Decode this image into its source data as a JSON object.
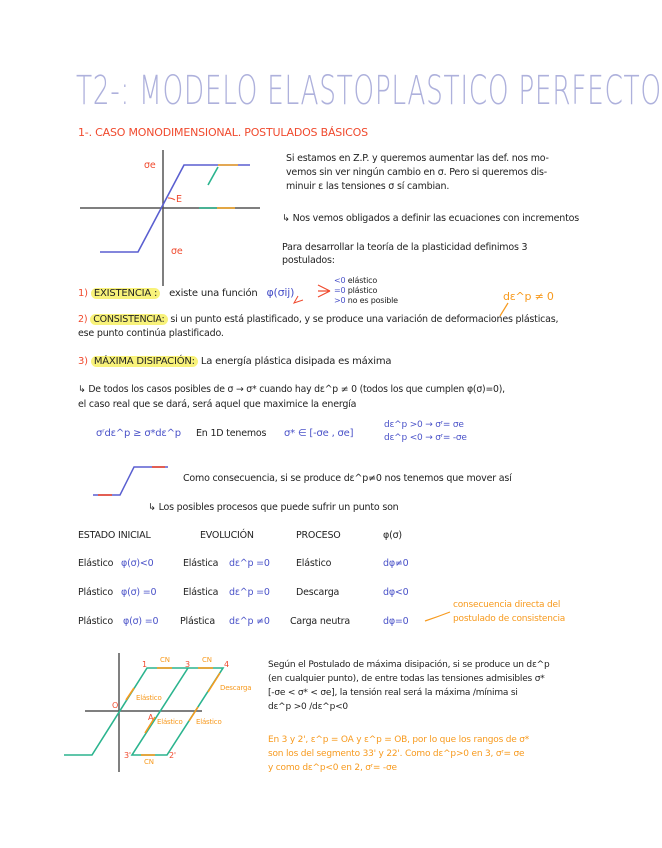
{
  "title": "T2-: MODELO ELASTOPLASTICO PERFECTO",
  "section1": "1-. CASO MONODIMENSIONAL. POSTULADOS BÁSICOS",
  "diagram1": {
    "sigma_top": "σe",
    "sigma_bottom": "σe",
    "modulus": "E"
  },
  "intro": [
    "Si estamos en Z.P. y queremos aumentar las def. nos mo-",
    "vemos sin ver ningún cambio en σ. Pero si queremos dis-",
    "minuir ε las tensiones σ sí cambian."
  ],
  "arrow_note": "↳ Nos vemos obligados a definir las ecuaciones con incrementos",
  "postulados_intro": [
    "Para desarrollar la teoría de la plasticidad definimos 3",
    "postulados:"
  ],
  "p1": {
    "num": "1)",
    "name": "EXISTENCIA :",
    "text": "existe una función",
    "func": "φ(σij)",
    "cases": [
      {
        "sign": "<0",
        "label": "elástico"
      },
      {
        "sign": "=0",
        "label": "plástico"
      },
      {
        "sign": ">0",
        "label": "no es posible"
      }
    ]
  },
  "orange_note1": "dε^p ≠ 0",
  "p2": {
    "num": "2)",
    "name": "CONSISTENCIA:",
    "text": "si un punto está plastificado, y se produce una variación de deformaciones plásticas,",
    "text2": "ese punto continúa plastificado."
  },
  "p3": {
    "num": "3)",
    "name": "MÁXIMA DISIPACIÓN:",
    "text": "La energía plástica disipada es máxima"
  },
  "p3_detail": [
    "↳ De todos los casos posibles de σ → σ* cuando hay dε^p ≠ 0 (todos los que cumplen φ(σ)=0),",
    "el caso real que se dará, será aquel que maximice la energía"
  ],
  "formula": {
    "ineq": "σʳdε^p ≥ σ*dε^p",
    "text": "En 1D tenemos",
    "range": "σ* ∈ [-σe , σe]",
    "case1": "dε^p >0 → σʳ= σe",
    "case2": "dε^p <0 → σʳ= -σe"
  },
  "consequence": "Como consecuencia, si se produce dε^p≠0 nos tenemos que mover así",
  "processes_intro": "↳ Los posibles procesos que puede sufrir un punto son",
  "table": {
    "headers": [
      "ESTADO INICIAL",
      "EVOLUCIÓN",
      "PROCESO",
      "φ(σ)"
    ],
    "rows": [
      {
        "state": "Elástico",
        "state_f": "φ(σ)<0",
        "evo": "Elástica",
        "evo_f": "dε^p =0",
        "proc": "Elástico",
        "dphi": "dφ≠0"
      },
      {
        "state": "Plástico",
        "state_f": "φ(σ) =0",
        "evo": "Elástica",
        "evo_f": "dε^p =0",
        "proc": "Descarga",
        "dphi": "dφ<0"
      },
      {
        "state": "Plástico",
        "state_f": "φ(σ) =0",
        "evo": "Plástica",
        "evo_f": "dε^p ≠0",
        "proc": "Carga neutra",
        "dphi": "dφ=0"
      }
    ]
  },
  "table_note": [
    "consecuencia directa del",
    "postulado de consistencia"
  ],
  "diagram2": {
    "points": [
      "1",
      "3",
      "4",
      "O",
      "A",
      "3'",
      "2'"
    ],
    "cn": "CN",
    "elastico": "Elástico",
    "descarga": "Descarga"
  },
  "bottom_text": [
    "Según el Postulado de máxima disipación, si se produce un dε^p",
    "(en cualquier punto), de entre todas las tensiones admisibles σ*",
    "[-σe < σ* < σe], la tensión real será la máxima /mínima si",
    "dε^p >0 /dε^p<0"
  ],
  "bottom_orange": [
    "En 3 y 2', ε^p = OA y ε^p = OB, por lo que los rangos de σ*",
    "son los del segmento 33' y 22'. Como dε^p>0 en 3, σʳ= σe",
    "y como dε^p<0 en 2, σʳ= -σe"
  ],
  "colors": {
    "title": "#aeb1dc",
    "red": "#f04a2e",
    "blue": "#4a52c8",
    "orange": "#f79a1e",
    "green": "#2bb48e",
    "highlight": "#f8f27a"
  }
}
